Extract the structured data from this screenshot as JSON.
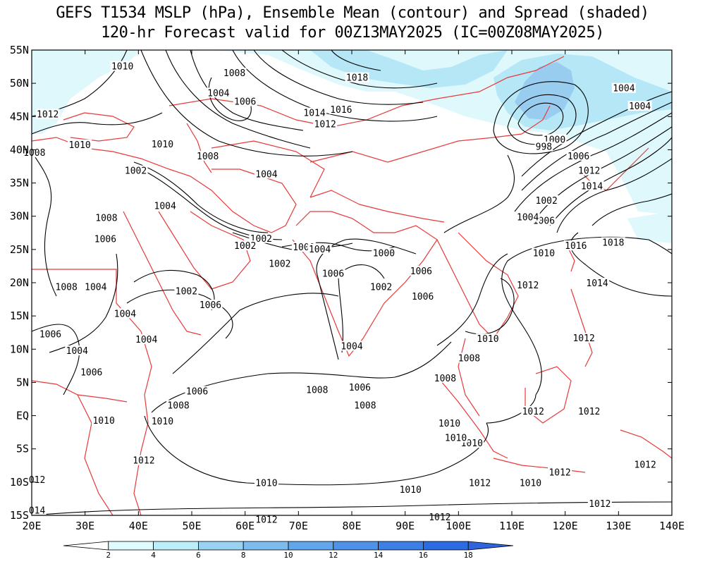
{
  "title": {
    "line1": "GEFS T1534 MSLP (hPa), Ensemble Mean (contour) and Spread (shaded)",
    "line2": "120-hr Forecast valid for 00Z13MAY2025 (IC=00Z08MAY2025)"
  },
  "axes": {
    "lon_ticks": [
      "20E",
      "30E",
      "40E",
      "50E",
      "60E",
      "70E",
      "80E",
      "90E",
      "100E",
      "110E",
      "120E",
      "130E",
      "140E"
    ],
    "lat_ticks": [
      "55N",
      "50N",
      "45N",
      "40N",
      "35N",
      "30N",
      "25N",
      "20N",
      "15N",
      "10N",
      "5N",
      "EQ",
      "5S",
      "10S",
      "15S"
    ],
    "lon_range": [
      20,
      140
    ],
    "lat_range": [
      -15,
      55
    ]
  },
  "colorbar": {
    "labels": [
      "2",
      "4",
      "6",
      "8",
      "10",
      "12",
      "14",
      "16",
      "18"
    ],
    "colors": [
      "#ffffff",
      "#e0fbfd",
      "#bdeef8",
      "#9ad3f2",
      "#7cbcef",
      "#62a6ec",
      "#4f93e8",
      "#3c7fe6",
      "#2b6ce3",
      "#2f64dd"
    ]
  },
  "colors": {
    "contour": "#000000",
    "boundary": "#e8393a",
    "spread_light": "#dff8fc",
    "spread_mid": "#b6e7f7",
    "spread_dark": "#98cdf0"
  },
  "contour_labels": [
    {
      "text": "1010",
      "lon": 37,
      "lat": 52.5
    },
    {
      "text": "1008",
      "lon": 58,
      "lat": 51.5
    },
    {
      "text": "1004",
      "lon": 55,
      "lat": 48.5
    },
    {
      "text": "1006",
      "lon": 60,
      "lat": 47.2
    },
    {
      "text": "1018",
      "lon": 81,
      "lat": 50.8
    },
    {
      "text": "1014",
      "lon": 73,
      "lat": 45.5
    },
    {
      "text": "1016",
      "lon": 78,
      "lat": 46
    },
    {
      "text": "1012",
      "lon": 75,
      "lat": 43.8
    },
    {
      "text": "1012",
      "lon": 23,
      "lat": 45.3
    },
    {
      "text": "1010",
      "lon": 29,
      "lat": 40.7
    },
    {
      "text": "1010",
      "lon": 44.5,
      "lat": 40.8
    },
    {
      "text": "1008",
      "lon": 20.5,
      "lat": 39.5
    },
    {
      "text": "1002",
      "lon": 39.5,
      "lat": 36.8
    },
    {
      "text": "1004",
      "lon": 64,
      "lat": 36.3
    },
    {
      "text": "1004",
      "lon": 45,
      "lat": 31.5
    },
    {
      "text": "1008",
      "lon": 34,
      "lat": 29.7
    },
    {
      "text": "1006",
      "lon": 33.8,
      "lat": 26.5
    },
    {
      "text": "1002",
      "lon": 63,
      "lat": 26.6
    },
    {
      "text": "1002",
      "lon": 60,
      "lat": 25.5
    },
    {
      "text": "1002",
      "lon": 66.5,
      "lat": 22.8
    },
    {
      "text": "1000",
      "lon": 71,
      "lat": 25.3
    },
    {
      "text": "1004",
      "lon": 74,
      "lat": 25
    },
    {
      "text": "1000",
      "lon": 86,
      "lat": 24.4
    },
    {
      "text": "1006",
      "lon": 76.5,
      "lat": 21.3
    },
    {
      "text": "1006",
      "lon": 93,
      "lat": 21.7
    },
    {
      "text": "1002",
      "lon": 85.5,
      "lat": 19.3
    },
    {
      "text": "1006",
      "lon": 93.3,
      "lat": 17.9
    },
    {
      "text": "1008",
      "lon": 26.5,
      "lat": 19.3
    },
    {
      "text": "1004",
      "lon": 32,
      "lat": 19.3
    },
    {
      "text": "1002",
      "lon": 49,
      "lat": 18.7
    },
    {
      "text": "1006",
      "lon": 53.5,
      "lat": 16.6
    },
    {
      "text": "1004",
      "lon": 37.5,
      "lat": 15.3
    },
    {
      "text": "1004",
      "lon": 41.5,
      "lat": 11.4
    },
    {
      "text": "1006",
      "lon": 23.5,
      "lat": 12.2
    },
    {
      "text": "1004",
      "lon": 28.5,
      "lat": 9.7
    },
    {
      "text": "1006",
      "lon": 31.2,
      "lat": 6.5
    },
    {
      "text": "1004",
      "lon": 80,
      "lat": 10.4
    },
    {
      "text": "1006",
      "lon": 81.5,
      "lat": 4.2
    },
    {
      "text": "1010",
      "lon": 105.5,
      "lat": 11.5
    },
    {
      "text": "1008",
      "lon": 102,
      "lat": 8.6
    },
    {
      "text": "1008",
      "lon": 97.5,
      "lat": 5.6
    },
    {
      "text": "1008",
      "lon": 73.5,
      "lat": 3.8
    },
    {
      "text": "1006",
      "lon": 51,
      "lat": 3.6
    },
    {
      "text": "1008",
      "lon": 47.5,
      "lat": 1.5
    },
    {
      "text": "1010",
      "lon": 33.5,
      "lat": -0.8
    },
    {
      "text": "1010",
      "lon": 44.5,
      "lat": -0.9
    },
    {
      "text": "1012",
      "lon": 41,
      "lat": -6.8
    },
    {
      "text": "012",
      "lon": 21,
      "lat": -9.7
    },
    {
      "text": "014",
      "lon": 21,
      "lat": -14.3
    },
    {
      "text": "1010",
      "lon": 102.5,
      "lat": -4.2
    },
    {
      "text": "1012",
      "lon": 104,
      "lat": -10.2
    },
    {
      "text": "1010",
      "lon": 113.5,
      "lat": -10.2
    },
    {
      "text": "1012",
      "lon": 119,
      "lat": -8.6
    },
    {
      "text": "1012",
      "lon": 135,
      "lat": -7.4
    },
    {
      "text": "1012",
      "lon": 114,
      "lat": 0.6
    },
    {
      "text": "1012",
      "lon": 124.5,
      "lat": 0.6
    },
    {
      "text": "1012",
      "lon": 123.5,
      "lat": 11.6
    },
    {
      "text": "1014",
      "lon": 126,
      "lat": 19.9
    },
    {
      "text": "1012",
      "lon": 113,
      "lat": 19.6
    },
    {
      "text": "1016",
      "lon": 122,
      "lat": 25.5
    },
    {
      "text": "1018",
      "lon": 129,
      "lat": 26
    },
    {
      "text": "1010",
      "lon": 116,
      "lat": 24.4
    },
    {
      "text": "1006",
      "lon": 116,
      "lat": 29.3
    },
    {
      "text": "1004",
      "lon": 113,
      "lat": 29.8
    },
    {
      "text": "1002",
      "lon": 116.5,
      "lat": 32.3
    },
    {
      "text": "1014",
      "lon": 125,
      "lat": 34.5
    },
    {
      "text": "1012",
      "lon": 124.5,
      "lat": 36.8
    },
    {
      "text": "1006",
      "lon": 122.5,
      "lat": 39
    },
    {
      "text": "1000",
      "lon": 118,
      "lat": 41.5
    },
    {
      "text": "998",
      "lon": 116,
      "lat": 40.4
    },
    {
      "text": "1004",
      "lon": 131,
      "lat": 49.2
    },
    {
      "text": "1004",
      "lon": 134,
      "lat": 46.5
    },
    {
      "text": "1008",
      "lon": 53,
      "lat": 39
    },
    {
      "text": "1010",
      "lon": 99.5,
      "lat": -3.4
    },
    {
      "text": "1010",
      "lon": -1,
      "lat": -1
    },
    {
      "text": "1008",
      "lon": 82.5,
      "lat": 1.5
    },
    {
      "text": "1010",
      "lon": 98.3,
      "lat": -1.2
    },
    {
      "text": "1008",
      "lon": 2,
      "lat": 2
    },
    {
      "text": "1010",
      "lon": 64,
      "lat": -10.2
    },
    {
      "text": "1010",
      "lon": 91,
      "lat": -11.2
    },
    {
      "text": "1012",
      "lon": 64,
      "lat": -15.7
    },
    {
      "text": "1012",
      "lon": 96.5,
      "lat": -15.3
    },
    {
      "text": "1012",
      "lon": 126.5,
      "lat": -13.3
    }
  ]
}
